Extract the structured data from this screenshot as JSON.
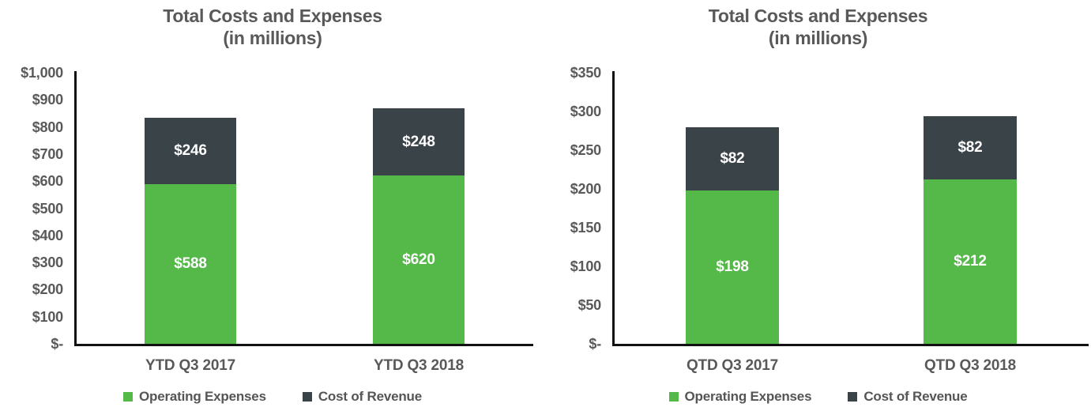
{
  "page": {
    "background": "#ffffff",
    "text_color": "#595959",
    "axis_color": "#111111",
    "bar_label_color": "#ffffff"
  },
  "chart_data": [
    {
      "type": "bar",
      "stacked": true,
      "title": "Total Costs and Expenses",
      "subtitle": "(in millions)",
      "categories": [
        "YTD Q3 2017",
        "YTD Q3 2018"
      ],
      "series": [
        {
          "name": "Operating Expenses",
          "color": "#54B948",
          "values": [
            588,
            620
          ],
          "data_labels": [
            "$588",
            "$620"
          ]
        },
        {
          "name": "Cost of Revenue",
          "color": "#3A4348",
          "values": [
            246,
            248
          ],
          "data_labels": [
            "$246",
            "$248"
          ]
        }
      ],
      "totals": [
        834,
        868
      ],
      "ylim": [
        0,
        1000
      ],
      "yticks": {
        "values": [
          0,
          100,
          200,
          300,
          400,
          500,
          600,
          700,
          800,
          900,
          1000
        ],
        "labels": [
          "$-",
          "$100",
          "$200",
          "$300",
          "$400",
          "$500",
          "$600",
          "$700",
          "$800",
          "$900",
          "$1,000"
        ]
      },
      "grid": false,
      "legend_position": "bottom"
    },
    {
      "type": "bar",
      "stacked": true,
      "title": "Total Costs and Expenses",
      "subtitle": "(in millions)",
      "categories": [
        "QTD Q3 2017",
        "QTD Q3 2018"
      ],
      "series": [
        {
          "name": "Operating Expenses",
          "color": "#54B948",
          "values": [
            198,
            212
          ],
          "data_labels": [
            "$198",
            "$212"
          ]
        },
        {
          "name": "Cost of Revenue",
          "color": "#3A4348",
          "values": [
            82,
            82
          ],
          "data_labels": [
            "$82",
            "$82"
          ]
        }
      ],
      "totals": [
        280,
        294
      ],
      "ylim": [
        0,
        350
      ],
      "yticks": {
        "values": [
          0,
          50,
          100,
          150,
          200,
          250,
          300,
          350
        ],
        "labels": [
          "$-",
          "$50",
          "$100",
          "$150",
          "$200",
          "$250",
          "$300",
          "$350"
        ]
      },
      "grid": false,
      "legend_position": "bottom"
    }
  ]
}
